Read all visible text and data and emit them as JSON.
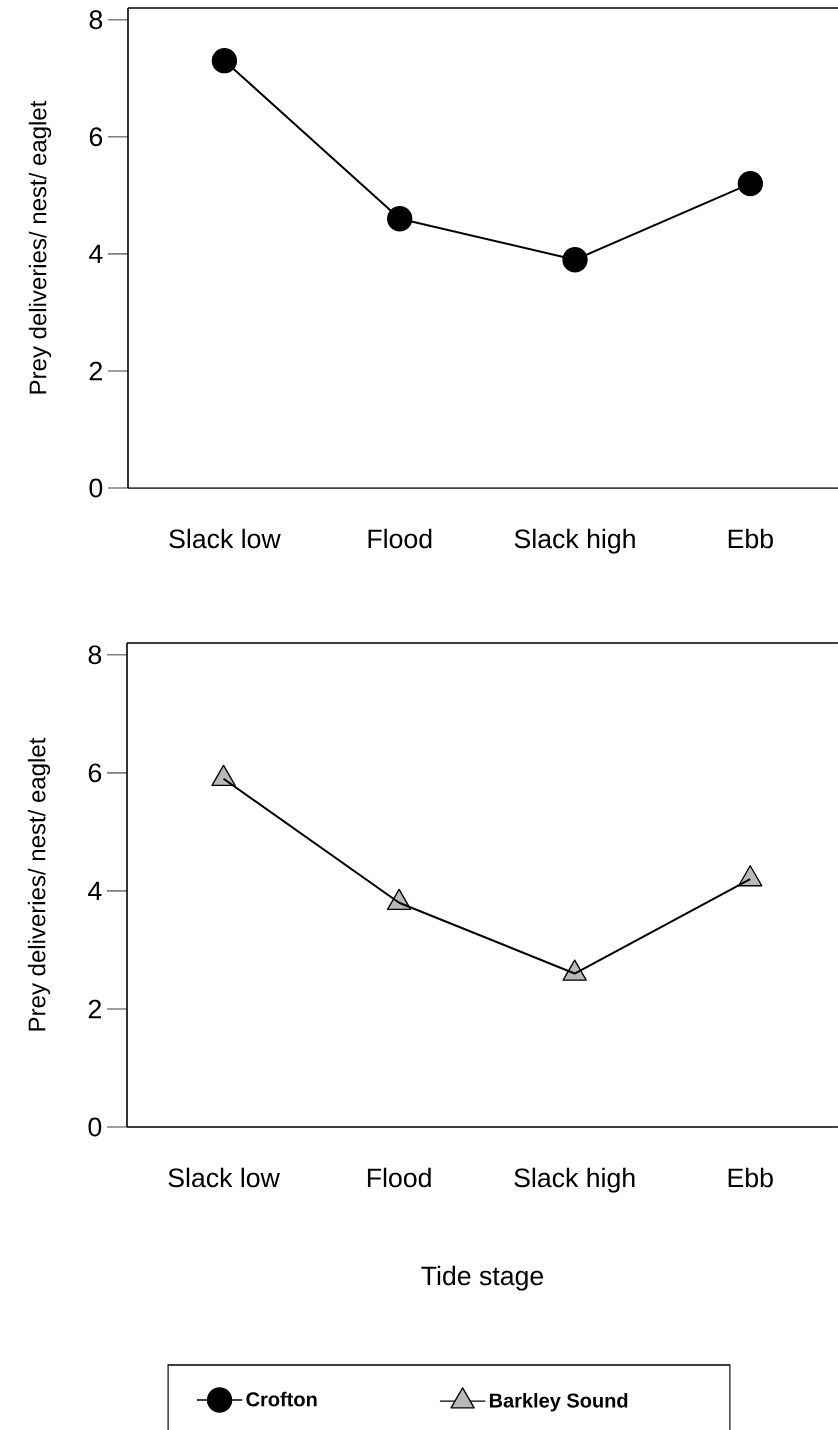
{
  "chart_data": [
    {
      "type": "line",
      "ylabel": "Prey deliveries/ nest/ eaglet",
      "categories": [
        "Slack low",
        "Flood",
        "Slack high",
        "Ebb"
      ],
      "series": [
        {
          "name": "Crofton",
          "color": "#000000",
          "values": [
            7.3,
            4.6,
            3.9,
            5.2
          ]
        }
      ],
      "ylim": [
        0,
        8.2
      ],
      "yticks": [
        0,
        2,
        4,
        6,
        8
      ],
      "marker": "circle",
      "legend": "bottom"
    },
    {
      "type": "line",
      "ylabel": "Prey deliveries/ nest/ eaglet",
      "xlabel": "Tide stage",
      "categories": [
        "Slack low",
        "Flood",
        "Slack high",
        "Ebb"
      ],
      "series": [
        {
          "name": "Barkley Sound",
          "color": "#000000",
          "values": [
            5.9,
            3.8,
            2.6,
            4.2
          ]
        }
      ],
      "ylim": [
        0,
        8.2
      ],
      "yticks": [
        0,
        2,
        4,
        6,
        8
      ],
      "marker": "triangle",
      "legend": "bottom"
    }
  ]
}
